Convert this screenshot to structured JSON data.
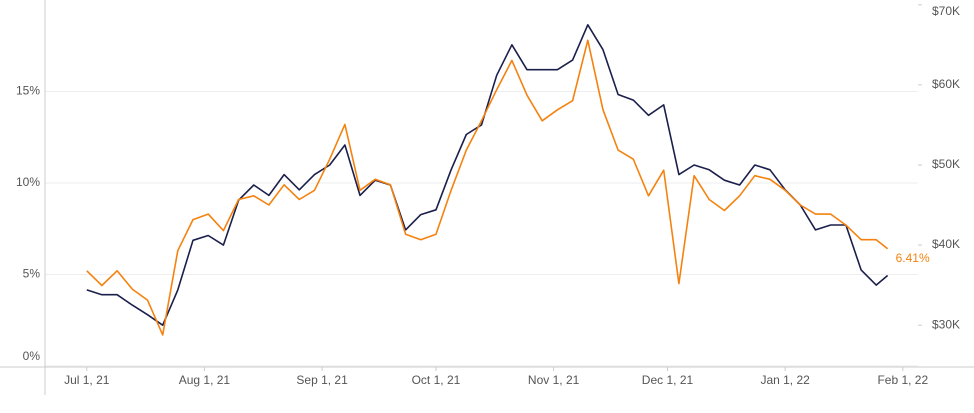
{
  "chart_data": {
    "type": "line",
    "x": [
      "2021-07-01",
      "2021-07-05",
      "2021-07-09",
      "2021-07-13",
      "2021-07-17",
      "2021-07-21",
      "2021-07-25",
      "2021-07-29",
      "2021-08-02",
      "2021-08-06",
      "2021-08-10",
      "2021-08-14",
      "2021-08-18",
      "2021-08-22",
      "2021-08-26",
      "2021-08-30",
      "2021-09-03",
      "2021-09-07",
      "2021-09-11",
      "2021-09-15",
      "2021-09-19",
      "2021-09-23",
      "2021-09-27",
      "2021-10-01",
      "2021-10-05",
      "2021-10-09",
      "2021-10-13",
      "2021-10-17",
      "2021-10-21",
      "2021-10-25",
      "2021-10-29",
      "2021-11-02",
      "2021-11-06",
      "2021-11-10",
      "2021-11-14",
      "2021-11-18",
      "2021-11-22",
      "2021-11-26",
      "2021-11-30",
      "2021-12-04",
      "2021-12-08",
      "2021-12-12",
      "2021-12-16",
      "2021-12-20",
      "2021-12-24",
      "2021-12-28",
      "2022-01-01",
      "2022-01-05",
      "2022-01-09",
      "2022-01-13",
      "2022-01-17",
      "2022-01-21",
      "2022-01-25",
      "2022-01-28"
    ],
    "series": [
      {
        "color": "#f5820f",
        "values": [
          5.2,
          4.4,
          5.2,
          4.2,
          3.6,
          1.7,
          6.3,
          8.0,
          8.3,
          7.4,
          9.1,
          9.3,
          8.8,
          9.9,
          9.1,
          9.6,
          11.3,
          13.2,
          9.6,
          10.2,
          9.9,
          7.2,
          6.9,
          7.2,
          9.6,
          11.8,
          13.4,
          15.1,
          16.7,
          14.8,
          13.4,
          14.0,
          14.5,
          17.8,
          14.0,
          11.8,
          11.3,
          9.3,
          10.7,
          4.5,
          10.4,
          9.1,
          8.5,
          9.3,
          10.4,
          10.2,
          9.6,
          8.8,
          8.3,
          8.3,
          7.7,
          6.9,
          6.9,
          6.41
        ]
      },
      {
        "color": "#1b1f4b",
        "axis": "y2",
        "values": [
          34400,
          33800,
          33800,
          32500,
          31300,
          30000,
          34400,
          40600,
          41200,
          40000,
          45600,
          47500,
          46200,
          48800,
          46900,
          48800,
          50000,
          52500,
          46200,
          48100,
          47500,
          41900,
          43800,
          44400,
          49400,
          53800,
          55000,
          61200,
          65000,
          61900,
          61900,
          61900,
          63100,
          67500,
          64400,
          58800,
          58100,
          56200,
          57500,
          48800,
          50000,
          49400,
          48100,
          47500,
          50000,
          49400,
          46900,
          45000,
          41900,
          42500,
          42500,
          36900,
          35000,
          36200
        ]
      }
    ],
    "annotations": [
      {
        "x": "2022-01-28",
        "y": 6.41,
        "text": "6.41%"
      }
    ],
    "xlim": [
      "2021-06-20",
      "2022-02-05"
    ],
    "xticks": [
      {
        "value": "2021-07-01",
        "label": "Jul 1, 21"
      },
      {
        "value": "2021-08-01",
        "label": "Aug 1, 21"
      },
      {
        "value": "2021-09-01",
        "label": "Sep 1, 21"
      },
      {
        "value": "2021-10-01",
        "label": "Oct 1, 21"
      },
      {
        "value": "2021-11-01",
        "label": "Nov 1, 21"
      },
      {
        "value": "2021-12-01",
        "label": "Dec 1, 21"
      },
      {
        "value": "2022-01-01",
        "label": "Jan 1, 22"
      },
      {
        "value": "2022-02-01",
        "label": "Feb 1, 22"
      }
    ],
    "ylim": [
      0,
      20
    ],
    "yticks": [
      {
        "value": 0,
        "label": "0%"
      },
      {
        "value": 5,
        "label": "5%"
      },
      {
        "value": 10,
        "label": "10%"
      },
      {
        "value": 15,
        "label": "15%"
      }
    ],
    "y2lim": [
      24900,
      70600
    ],
    "y2ticks": [
      {
        "value": 30000,
        "label": "$30K"
      },
      {
        "value": 40000,
        "label": "$40K"
      },
      {
        "value": 50000,
        "label": "$50K"
      },
      {
        "value": 60000,
        "label": "$60K"
      },
      {
        "value": 70000,
        "label": "$70K"
      }
    ],
    "grid": true
  }
}
